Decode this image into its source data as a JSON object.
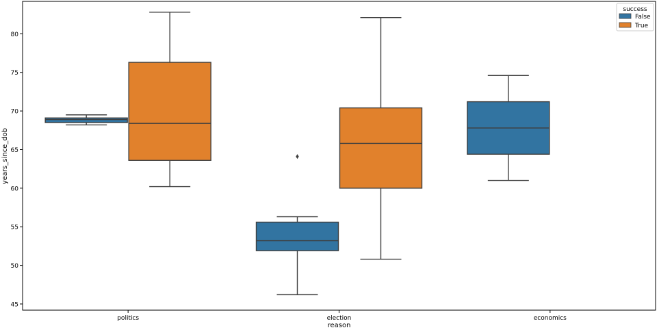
{
  "chart_data": {
    "type": "box",
    "xlabel": "reason",
    "ylabel": "years_since_dob",
    "categories": [
      "politics",
      "election",
      "economics"
    ],
    "ylim": [
      44.2,
      84.2
    ],
    "yticks": [
      45,
      50,
      55,
      60,
      65,
      70,
      75,
      80
    ],
    "grid": false,
    "legend": {
      "title": "success",
      "position": "top-right"
    },
    "series": [
      {
        "name": "False",
        "color": "#3274a1",
        "boxes": [
          {
            "category": "politics",
            "whisker_low": 68.2,
            "q1": 68.5,
            "median": 68.9,
            "q3": 69.1,
            "whisker_high": 69.5,
            "outliers": []
          },
          {
            "category": "election",
            "whisker_low": 46.2,
            "q1": 51.9,
            "median": 53.2,
            "q3": 55.6,
            "whisker_high": 56.3,
            "outliers": [
              64.1
            ]
          },
          {
            "category": "economics",
            "whisker_low": 61.0,
            "q1": 64.4,
            "median": 67.8,
            "q3": 71.2,
            "whisker_high": 74.6,
            "outliers": []
          }
        ]
      },
      {
        "name": "True",
        "color": "#e1812c",
        "boxes": [
          {
            "category": "politics",
            "whisker_low": 60.2,
            "q1": 63.6,
            "median": 68.4,
            "q3": 76.3,
            "whisker_high": 82.8,
            "outliers": []
          },
          {
            "category": "election",
            "whisker_low": 50.8,
            "q1": 60.0,
            "median": 65.8,
            "q3": 70.4,
            "whisker_high": 82.1,
            "outliers": []
          },
          null
        ]
      }
    ]
  }
}
